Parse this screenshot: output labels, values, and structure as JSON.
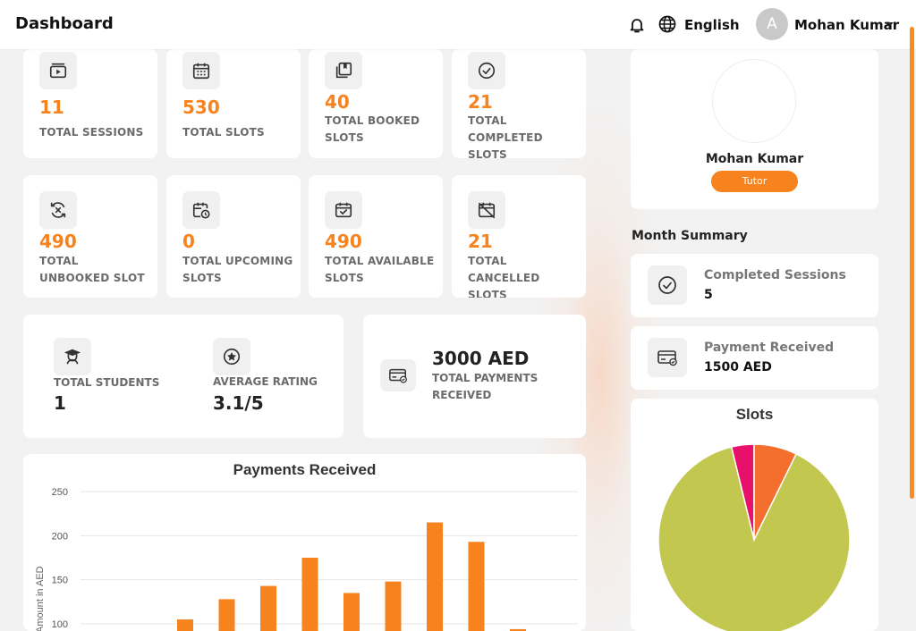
{
  "header": {
    "title": "Dashboard",
    "language": "English",
    "avatar_letter": "A",
    "user_name": "Mohan Kumar"
  },
  "stats_row1": [
    {
      "value": "11",
      "label": "TOTAL SESSIONS",
      "icon": "play-session-icon"
    },
    {
      "value": "530",
      "label": "TOTAL SLOTS",
      "icon": "calendar-grid-icon"
    },
    {
      "value": "40",
      "label": "TOTAL BOOKED SLOTS",
      "icon": "booked-stack-icon"
    },
    {
      "value": "21",
      "label": "TOTAL COMPLETED SLOTS",
      "icon": "check-circle-icon"
    }
  ],
  "stats_row2": [
    {
      "value": "490",
      "label": "TOTAL UNBOOKED SLOT",
      "icon": "cycle-x-icon"
    },
    {
      "value": "0",
      "label": "TOTAL UPCOMING SLOTS",
      "icon": "calendar-clock-icon"
    },
    {
      "value": "490",
      "label": "TOTAL AVAILABLE SLOTS",
      "icon": "calendar-check-icon"
    },
    {
      "value": "21",
      "label": "TOTAL CANCELLED SLOTS",
      "icon": "calendar-cancel-icon"
    }
  ],
  "summary_card": {
    "students_label": "TOTAL STUDENTS",
    "students_value": "1",
    "rating_label": "AVERAGE RATING",
    "rating_value": "3.1/5"
  },
  "payments_card": {
    "amount": "3000 AED",
    "label": "TOTAL PAYMENTS RECEIVED"
  },
  "profile": {
    "name": "Mohan Kumar",
    "role": "Tutor"
  },
  "month_summary": {
    "title": "Month Summary",
    "completed_label": "Completed Sessions",
    "completed_value": "5",
    "payment_label": "Payment Received",
    "payment_value": "1500 AED"
  },
  "colors": {
    "accent": "#f7831e",
    "pie_green": "#c2c84f",
    "pie_pink": "#e8116a",
    "pie_orange": "#f46f2e"
  },
  "chart_data": [
    {
      "type": "bar",
      "title": "Payments Received",
      "ylabel": "Amount in AED",
      "ylim": [
        100,
        250
      ],
      "yticks": [
        100,
        150,
        200,
        250
      ],
      "grid": true,
      "values": [
        105,
        128,
        143,
        175,
        135,
        148,
        215,
        193,
        94
      ],
      "color": "#f7831e"
    },
    {
      "type": "pie",
      "title": "Slots",
      "values": [
        21,
        40,
        490
      ],
      "colors": [
        "#e8116a",
        "#f46f2e",
        "#c2c84f"
      ]
    }
  ]
}
